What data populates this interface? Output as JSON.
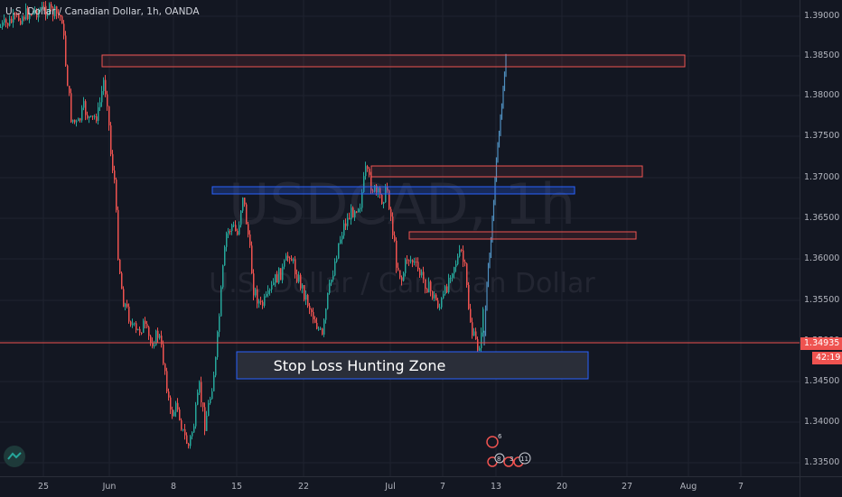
{
  "legend": "U.S. Dollar / Canadian Dollar, 1h, OANDA",
  "watermark": {
    "symbol": "USDCAD, 1h",
    "description": "U.S. Dollar / Canadian Dollar"
  },
  "zone_label": "Stop Loss Hunting Zone",
  "price_axis": [
    "1.39000",
    "1.38500",
    "1.38000",
    "1.37500",
    "1.37000",
    "1.36500",
    "1.36000",
    "1.35500",
    "1.35000",
    "1.34500",
    "1.34000",
    "1.33500"
  ],
  "current_price": "1.34935",
  "countdown": "42:19",
  "time_axis": [
    "25",
    "Jun",
    "8",
    "15",
    "22",
    "Jul",
    "7",
    "13",
    "20",
    "27",
    "Aug",
    "7"
  ],
  "event_markers": [
    "6",
    "8",
    "3",
    "11"
  ],
  "colors": {
    "background": "#131722",
    "grid": "#1f2330",
    "bull": "#26a69a",
    "bear": "#ef5350",
    "recent": "#4f8fbf",
    "resistance_fill": "rgba(239,83,80,0.12)",
    "support_border": "#2962ff",
    "zone_fill": "#2a2e39"
  },
  "icons": {
    "logo": "tradingview-logo-icon"
  }
}
